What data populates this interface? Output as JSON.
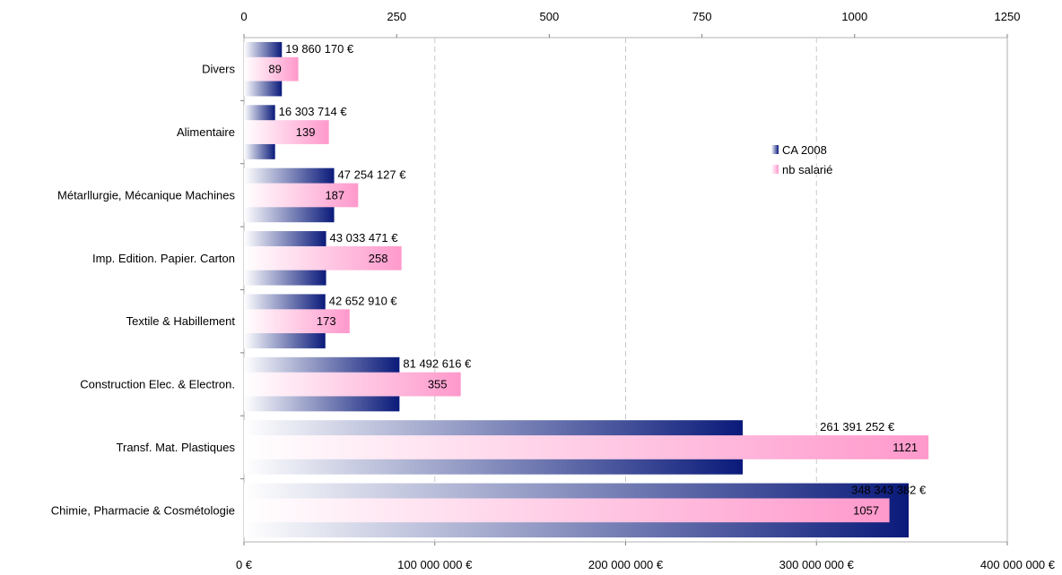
{
  "chart_data": {
    "type": "bar",
    "orientation": "horizontal",
    "categories": [
      "Divers",
      "Alimentaire",
      "Métarllurgie, Mécanique Machines",
      "Imp. Edition. Papier. Carton",
      "Textile & Habillement",
      "Construction Elec. & Electron.",
      "Transf. Mat. Plastiques",
      "Chimie, Pharmacie & Cosmétologie"
    ],
    "series": [
      {
        "name": "CA 2008",
        "axis": "bottom",
        "color": "#0a1a7a",
        "values": [
          19860170,
          16303714,
          47254127,
          43033471,
          42652910,
          81492616,
          261391252,
          348343382
        ],
        "labels": [
          "19 860 170 €",
          "16 303 714 €",
          "47 254 127 €",
          "43 033 471 €",
          "42 652 910 €",
          "81 492 616 €",
          "261 391 252 €",
          "348 343 382 €"
        ]
      },
      {
        "name": "nb salarié",
        "axis": "top",
        "color": "#ff99cc",
        "values": [
          89,
          139,
          187,
          258,
          173,
          355,
          1121,
          1057
        ],
        "labels": [
          "89",
          "139",
          "187",
          "258",
          "173",
          "355",
          "1121",
          "1057"
        ]
      }
    ],
    "bottom_axis": {
      "range": [
        0,
        400000000
      ],
      "ticks": [
        0,
        100000000,
        200000000,
        300000000,
        400000000
      ],
      "tick_labels": [
        "0 €",
        "100 000 000 €",
        "200 000 000 €",
        "300 000 000 €",
        "400 000 000 €"
      ]
    },
    "top_axis": {
      "range": [
        0,
        1250
      ],
      "ticks": [
        0,
        250,
        500,
        750,
        1000,
        1250
      ],
      "tick_labels": [
        "0",
        "250",
        "500",
        "750",
        "1000",
        "1250"
      ]
    },
    "grid": "vertical dashed",
    "legend_position": "right"
  }
}
